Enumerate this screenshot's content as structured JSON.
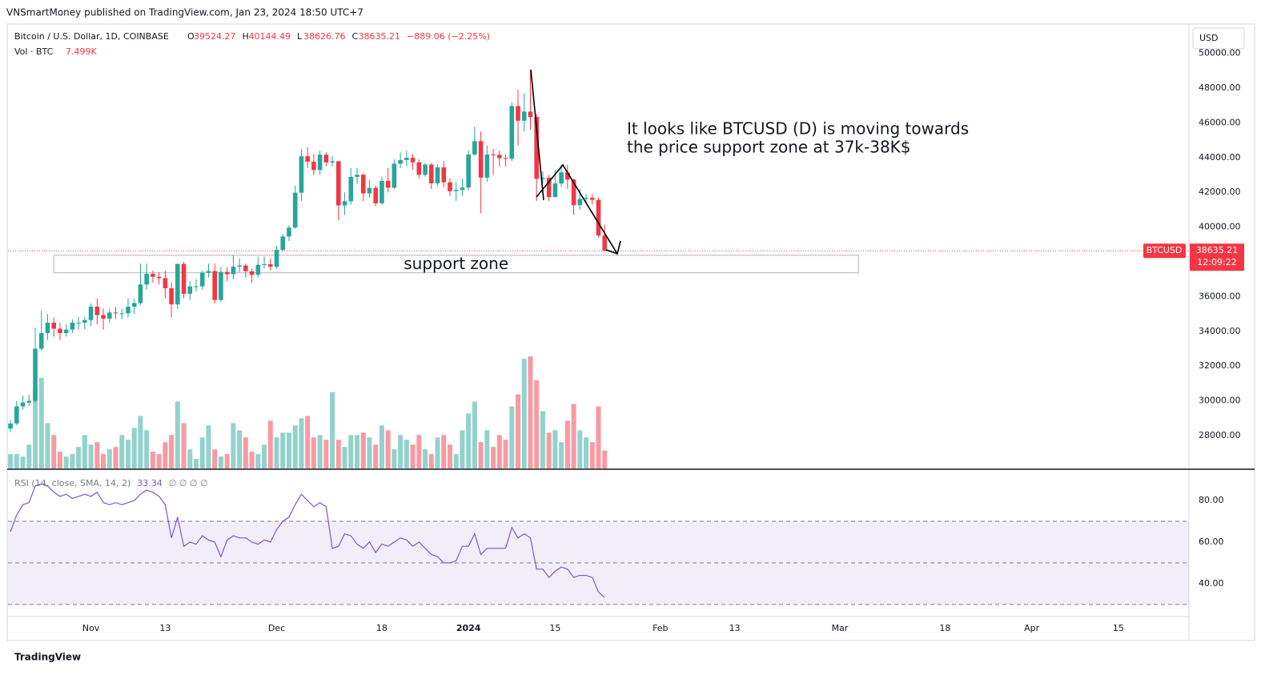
{
  "header": {
    "publisher": "VNSmartMoney published on TradingView.com, Jan 23, 2024 18:50 UTC+7"
  },
  "toolbar": {
    "currency": "USD"
  },
  "footer": {
    "brand": "TradingView"
  },
  "chart_data": [
    {
      "type": "candlestick",
      "title": "Bitcoin / U.S. Dollar, 1D, COINBASE",
      "ohlc_prefixes": [
        "O",
        "H",
        "L",
        "C"
      ],
      "change": "−889.06 (−2.25%)",
      "open": [
        28400,
        28700,
        29680,
        29900,
        30000,
        33000,
        33900,
        34500,
        34150,
        33900,
        34100,
        34500,
        34500,
        34650,
        35420,
        34940,
        34730,
        35080,
        35040,
        35040,
        35420,
        35630,
        36700,
        37310,
        37140,
        37060,
        36480,
        35550,
        37880,
        36160,
        36590,
        36590,
        37380,
        37470,
        35800,
        37420,
        37290,
        37720,
        37790,
        37460,
        37250,
        37830,
        37860,
        37720,
        38690,
        39460,
        39970,
        41980,
        44080,
        43770,
        43290,
        44170,
        43720,
        43790,
        41250,
        41490,
        42890,
        43020,
        41940,
        42260,
        41370,
        42660,
        42270,
        43650,
        43860,
        43990,
        43730,
        43010,
        43600,
        42520,
        43440,
        42580,
        42070,
        42140,
        42280,
        44180,
        44950,
        42850,
        44180,
        44160,
        43970,
        43930,
        46970,
        46120,
        46650,
        46340,
        42780,
        42840,
        41730,
        42510,
        43150,
        42740,
        41260,
        41620,
        41680,
        41570,
        39524.27
      ],
      "high": [
        28900,
        30000,
        30300,
        30350,
        34200,
        35200,
        35000,
        34800,
        34500,
        34400,
        34700,
        34800,
        34850,
        35600,
        35900,
        35300,
        35300,
        35400,
        35300,
        35900,
        35900,
        37900,
        37900,
        37500,
        37400,
        37500,
        36800,
        37900,
        38000,
        36900,
        37000,
        37500,
        37900,
        37900,
        37700,
        37700,
        38400,
        38200,
        37900,
        37600,
        38300,
        38300,
        38200,
        38900,
        39600,
        40100,
        42400,
        44500,
        44600,
        44200,
        44400,
        44300,
        44100,
        43800,
        42000,
        43400,
        43400,
        43100,
        42700,
        42400,
        42900,
        43400,
        43900,
        44300,
        44400,
        44200,
        43900,
        43700,
        43700,
        43600,
        43800,
        42800,
        42600,
        42800,
        44400,
        45800,
        45500,
        44700,
        44500,
        44400,
        44200,
        47200,
        47900,
        47700,
        49000,
        46500,
        43200,
        43000,
        43300,
        43600,
        43600,
        42800,
        42200,
        41900,
        41900,
        41700,
        40144.49
      ],
      "low": [
        28200,
        28600,
        29500,
        29700,
        29900,
        32900,
        33500,
        33700,
        33500,
        33700,
        33900,
        34100,
        34100,
        34300,
        34400,
        34100,
        34500,
        34700,
        34700,
        34800,
        35000,
        35500,
        36400,
        36800,
        36700,
        35900,
        34800,
        35300,
        35900,
        35800,
        36300,
        36400,
        37100,
        35600,
        35700,
        36900,
        37000,
        37400,
        37100,
        36800,
        37100,
        37600,
        37500,
        37600,
        38600,
        39200,
        39900,
        41500,
        43400,
        43000,
        43000,
        43500,
        43500,
        40400,
        40700,
        41300,
        42500,
        41500,
        41700,
        41200,
        41300,
        42000,
        42200,
        43400,
        43500,
        43300,
        42800,
        42900,
        42200,
        42400,
        42300,
        41800,
        41500,
        41800,
        42100,
        44100,
        40800,
        42600,
        43000,
        43500,
        43500,
        43800,
        44700,
        45500,
        45600,
        41500,
        42500,
        41500,
        41700,
        42300,
        42200,
        40700,
        41000,
        41400,
        41300,
        39400,
        38626.76
      ],
      "close": [
        28700,
        29680,
        29900,
        30000,
        33000,
        33900,
        34500,
        34150,
        33900,
        34100,
        34500,
        34500,
        34650,
        35420,
        34940,
        34730,
        35080,
        35040,
        35040,
        35420,
        35630,
        36700,
        37310,
        37140,
        37060,
        36480,
        35550,
        37880,
        36160,
        36590,
        36590,
        37380,
        37470,
        35800,
        37420,
        37290,
        37720,
        37790,
        37460,
        37250,
        37830,
        37860,
        37720,
        38690,
        39460,
        39970,
        41980,
        44080,
        43770,
        43290,
        44170,
        43720,
        43790,
        41250,
        41490,
        42890,
        43020,
        41940,
        42260,
        41370,
        42660,
        42270,
        43650,
        43860,
        43990,
        43730,
        43010,
        43600,
        42520,
        43440,
        42580,
        42070,
        42140,
        42280,
        44180,
        44950,
        42850,
        44180,
        44160,
        43970,
        43930,
        46970,
        46120,
        46650,
        46340,
        42780,
        42840,
        41730,
        42510,
        43150,
        42740,
        41260,
        41620,
        41680,
        41570,
        39524.27,
        38635.21
      ],
      "up_color": "#26a69a",
      "down_color": "#f23645",
      "xlim": [
        -0.4,
        190.4
      ],
      "xticks": [
        {
          "value": 13,
          "label": "Nov"
        },
        {
          "value": 25,
          "label": "13"
        },
        {
          "value": 43,
          "label": "Dec"
        },
        {
          "value": 60,
          "label": "18"
        },
        {
          "value": 74,
          "label": "2024"
        },
        {
          "value": 88,
          "label": "15"
        },
        {
          "value": 105,
          "label": "Feb"
        },
        {
          "value": 117,
          "label": "13"
        },
        {
          "value": 134,
          "label": "Mar"
        },
        {
          "value": 151,
          "label": "18"
        },
        {
          "value": 165,
          "label": "Apr"
        },
        {
          "value": 179,
          "label": "15"
        }
      ],
      "ylim": [
        26110,
        51690
      ],
      "yticks": [
        {
          "value": 28000,
          "label": "28000.00"
        },
        {
          "value": 30000,
          "label": "30000.00"
        },
        {
          "value": 32000,
          "label": "32000.00"
        },
        {
          "value": 34000,
          "label": "34000.00"
        },
        {
          "value": 36000,
          "label": "36000.00"
        },
        {
          "value": 38000,
          "label": "38000.00"
        },
        {
          "value": 40000,
          "label": "40000.00"
        },
        {
          "value": 42000,
          "label": "42000.00"
        },
        {
          "value": 44000,
          "label": "44000.00"
        },
        {
          "value": 46000,
          "label": "46000.00"
        },
        {
          "value": 48000,
          "label": "48000.00"
        },
        {
          "value": 50000,
          "label": "50000.00"
        }
      ],
      "grid": false,
      "price_label": {
        "symbol": "BTCUSD",
        "countdown": "12:09:22"
      },
      "annotations": [
        "It looks like BTCUSD (D) is moving towards",
        "the price support zone at 37k-38K$"
      ],
      "zone": {
        "label": "support zone",
        "x": [
          7,
          137
        ],
        "y": [
          37370,
          38380
        ]
      }
    },
    {
      "type": "bar",
      "name": "Vol · BTC",
      "values": [
        6000,
        6000,
        5000,
        10000,
        33000,
        38000,
        19000,
        14000,
        7000,
        5000,
        6000,
        9000,
        14000,
        10000,
        11000,
        6000,
        8000,
        9000,
        14000,
        12000,
        17000,
        22000,
        16000,
        7000,
        6000,
        11000,
        14000,
        28000,
        19000,
        8000,
        4000,
        13000,
        18000,
        8000,
        5000,
        6000,
        19000,
        16000,
        13000,
        7000,
        6000,
        10000,
        20000,
        13000,
        15000,
        15000,
        18000,
        21000,
        22000,
        13000,
        14000,
        12000,
        32000,
        12000,
        9000,
        14000,
        14000,
        15000,
        13000,
        10000,
        18000,
        16000,
        8000,
        14000,
        12000,
        10000,
        14000,
        8000,
        6000,
        13000,
        14000,
        10000,
        6000,
        16000,
        23000,
        28000,
        11000,
        16000,
        9000,
        14000,
        12000,
        26000,
        31000,
        46000,
        47000,
        37000,
        24000,
        15000,
        16000,
        11000,
        20000,
        27000,
        16000,
        13000,
        11000,
        26000,
        7499
      ],
      "value_labels": [
        null,
        null,
        null,
        null,
        null,
        null,
        null,
        null,
        null,
        null,
        null,
        null,
        null,
        null,
        null,
        null,
        null,
        null,
        null,
        null,
        null,
        null,
        null,
        null,
        null,
        null,
        null,
        null,
        null,
        null,
        null,
        null,
        null,
        null,
        null,
        null,
        null,
        null,
        null,
        null,
        null,
        null,
        null,
        null,
        null,
        null,
        null,
        null,
        null,
        null,
        null,
        null,
        null,
        null,
        null,
        null,
        null,
        null,
        null,
        null,
        null,
        null,
        null,
        null,
        null,
        null,
        null,
        null,
        null,
        null,
        null,
        null,
        null,
        null,
        null,
        null,
        null,
        null,
        null,
        null,
        null,
        null,
        null,
        null,
        null,
        null,
        null,
        null,
        null,
        null,
        null,
        null,
        null,
        null,
        null,
        null,
        "7.499K"
      ]
    },
    {
      "type": "line",
      "title": "RSI (14, close, SMA, 14, 2)",
      "placeholders": "∅ ∅ ∅ ∅",
      "color": "#7e57c2",
      "values": [
        65,
        73,
        78,
        79,
        87,
        88,
        87,
        84,
        82,
        83,
        81,
        82,
        83,
        82,
        84,
        79,
        78,
        79,
        78,
        79,
        80,
        83,
        85,
        84,
        82,
        78,
        62,
        72,
        58,
        60,
        59,
        63,
        61,
        60,
        53,
        61,
        63,
        62,
        62,
        60,
        59,
        61,
        60,
        66,
        70,
        72,
        78,
        83,
        80,
        77,
        79,
        77,
        57,
        58,
        64,
        63,
        59,
        57,
        60,
        55,
        59,
        58,
        60,
        62,
        61,
        58,
        60,
        57,
        54,
        53,
        50,
        50,
        51,
        58,
        58,
        64,
        54,
        57,
        57,
        57,
        57,
        67,
        62,
        64,
        62,
        47,
        47,
        43,
        46,
        48,
        47,
        43,
        44,
        44,
        43,
        36,
        33.34
      ],
      "ylim": [
        24.2,
        93.5
      ],
      "yticks": [
        {
          "value": 40,
          "label": "40.00"
        },
        {
          "value": 60,
          "label": "60.00"
        },
        {
          "value": 80,
          "label": "80.00"
        }
      ],
      "band": [
        30,
        70
      ],
      "midline": 50
    }
  ]
}
